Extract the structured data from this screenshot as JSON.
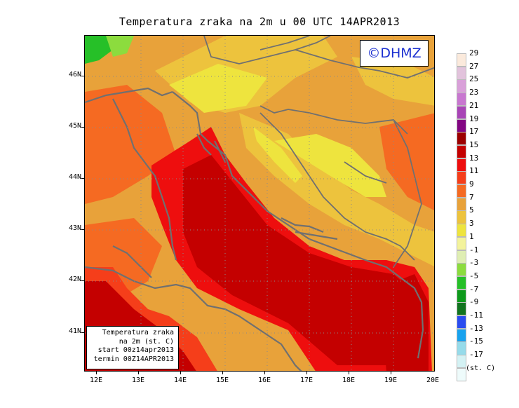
{
  "title": "Temperatura zraka na 2m u 00 UTC 14APR2013",
  "logo": "©DHMZ",
  "info_box": {
    "line1": "Temperatura zraka",
    "line2": "na 2m (st. C)",
    "line3": "start 00z14apr2013",
    "line4": "termin 00Z14APR2013"
  },
  "lat_labels": [
    "46N",
    "45N",
    "44N",
    "43N",
    "42N",
    "41N"
  ],
  "lon_labels": [
    "12E",
    "13E",
    "14E",
    "15E",
    "16E",
    "17E",
    "18E",
    "19E",
    "20E"
  ],
  "legend": {
    "unit": "(st. C)",
    "labels": [
      "29",
      "27",
      "25",
      "23",
      "21",
      "19",
      "17",
      "15",
      "13",
      "11",
      "9",
      "7",
      "5",
      "3",
      "1",
      "-1",
      "-3",
      "-5",
      "-7",
      "-9",
      "-11",
      "-13",
      "-15",
      "-17"
    ],
    "colors": [
      "#fbeadc",
      "#e2c3dc",
      "#d9a0d9",
      "#c877d0",
      "#a844b6",
      "#820682",
      "#9c0000",
      "#c40000",
      "#ee0e0e",
      "#f53e1a",
      "#f56a22",
      "#e8a23a",
      "#edc33d",
      "#eee43e",
      "#f3f39c",
      "#dfeeb3",
      "#8cdc3e",
      "#26c028",
      "#0e9a1c",
      "#12741f",
      "#2a4cf0",
      "#18a2ee",
      "#96dbea",
      "#d4f2f4",
      "#eefbfb"
    ]
  },
  "colors": {
    "sea_warm": "#c40000",
    "sea_edge": "#ee0e0e",
    "land_mild": "#e8a23a",
    "land_cool": "#eee43e",
    "land_cold": "#8cdc3e",
    "coastline": "#707070"
  }
}
